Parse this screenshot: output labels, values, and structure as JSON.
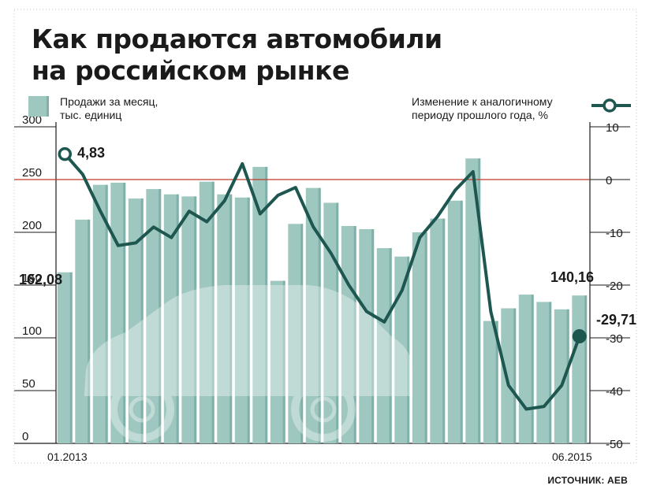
{
  "title_line1": "Как продаются автомобили",
  "title_line2": "на российском рынке",
  "legend_left_line1": "Продажи за месяц,",
  "legend_left_line2": "тыс. единиц",
  "legend_right_line1": "Изменение к аналогичному",
  "legend_right_line2": "периоду прошлого года, %",
  "source": "ИСТОЧНИК: АЕВ",
  "colors": {
    "bar_fill": "#9ec7c0",
    "bar_side": "#7fb1aa",
    "line": "#1d5750",
    "reference_line": "#c0392b"
  },
  "chart_data": {
    "type": "bar",
    "x_start_label": "01.2013",
    "x_end_label": "06.2015",
    "left_axis": {
      "ylim": [
        0,
        300
      ],
      "ticks": [
        "0",
        "50",
        "100",
        "150",
        "200",
        "250",
        "300"
      ]
    },
    "right_axis": {
      "ylim": [
        -50,
        10
      ],
      "ticks": [
        "-50",
        "-40",
        "-30",
        "-20",
        "-10",
        "0",
        "10"
      ]
    },
    "series": [
      {
        "type": "bar",
        "axis": "left",
        "values": [
          162.08,
          212,
          245,
          247,
          232,
          241,
          236,
          234,
          248,
          236,
          233,
          262,
          154,
          208,
          242,
          228,
          206,
          203,
          185,
          177,
          200,
          213,
          230,
          270,
          116,
          128,
          141,
          134,
          127,
          140.16
        ]
      },
      {
        "type": "line",
        "axis": "right",
        "values": [
          4.83,
          1,
          -6,
          -12.5,
          -12,
          -9,
          -11,
          -6,
          -8,
          -4,
          3,
          -6.5,
          -3,
          -1.5,
          -9,
          -14,
          -20,
          -25,
          -27,
          -21,
          -11,
          -7,
          -2,
          1.5,
          -25,
          -39,
          -43.5,
          -43,
          -39,
          -29.71
        ]
      }
    ],
    "annotations": {
      "first_bar": "162,08",
      "last_bar": "140,16",
      "first_point": "4,83",
      "last_point": "-29,71"
    },
    "reference_line_value": 0
  }
}
